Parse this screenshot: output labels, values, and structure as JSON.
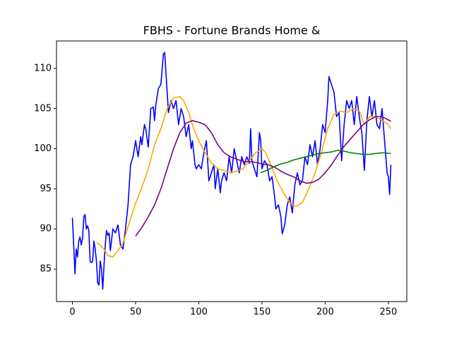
{
  "chart_data": {
    "type": "line",
    "title": "FBHS - Fortune Brands Home &",
    "xlim": [
      -12.6,
      264.6
    ],
    "ylim": [
      80.95,
      113.43
    ],
    "xticks": [
      0,
      50,
      100,
      150,
      200,
      250
    ],
    "yticks": [
      85,
      90,
      95,
      100,
      105,
      110
    ],
    "grid": false,
    "series": [
      {
        "color": "#0000ff",
        "x": [
          0,
          1,
          2,
          3,
          4,
          5,
          6,
          7,
          8,
          9,
          10,
          11,
          12,
          13,
          14,
          15,
          16,
          17,
          18,
          19,
          20,
          21,
          22,
          23,
          24,
          25,
          26,
          27,
          28,
          29,
          30,
          32,
          34,
          36,
          38,
          40,
          42,
          44,
          46,
          48,
          50,
          52,
          54,
          55,
          57,
          58,
          60,
          62,
          64,
          65,
          66,
          68,
          70,
          72,
          73,
          75,
          76,
          78,
          80,
          82,
          84,
          86,
          88,
          90,
          92,
          94,
          95,
          97,
          98,
          100,
          102,
          104,
          106,
          108,
          110,
          112,
          113,
          115,
          117,
          118,
          120,
          122,
          124,
          126,
          128,
          130,
          132,
          134,
          136,
          138,
          140,
          141,
          142,
          143,
          144,
          146,
          148,
          149,
          150,
          152,
          154,
          156,
          158,
          160,
          161,
          163,
          165,
          166,
          168,
          170,
          172,
          174,
          176,
          178,
          180,
          182,
          184,
          186,
          188,
          190,
          192,
          194,
          196,
          198,
          200,
          202,
          203,
          205,
          207,
          209,
          211,
          213,
          215,
          217,
          219,
          221,
          223,
          225,
          227,
          229,
          231,
          233,
          235,
          237,
          239,
          241,
          243,
          245,
          247,
          249,
          250,
          251,
          252
        ],
        "values": [
          91.4,
          88,
          84.4,
          87.5,
          86.5,
          88.5,
          89,
          88,
          88.8,
          91.5,
          91.8,
          90,
          90.4,
          89.8,
          86,
          85.8,
          86,
          88.5,
          87.5,
          86,
          83.3,
          83,
          86,
          85,
          82.5,
          85.5,
          88,
          89.8,
          89.2,
          89.5,
          87.3,
          90,
          89.5,
          90.5,
          88,
          87.5,
          90,
          93,
          98,
          99,
          101,
          99,
          101.5,
          100.5,
          103,
          102.5,
          100.2,
          105,
          105.2,
          103.5,
          105.5,
          107.5,
          108,
          111.8,
          112,
          107,
          104.5,
          106,
          105,
          106,
          103,
          105,
          104,
          101.5,
          103,
          100,
          101,
          98,
          97.5,
          98,
          97.5,
          99.5,
          101,
          96,
          97,
          98,
          95,
          97.5,
          94.5,
          96,
          97,
          96,
          99,
          97,
          100,
          98.5,
          97,
          99,
          98,
          99,
          98.2,
          102.5,
          98.5,
          98,
          97.5,
          96.5,
          102,
          101,
          97.5,
          98.5,
          98,
          96,
          96.5,
          94,
          92.5,
          93,
          91.5,
          89.4,
          90.5,
          93,
          94,
          92,
          95.5,
          97,
          95.5,
          96,
          99,
          98,
          100.5,
          99,
          101,
          98,
          100,
          103,
          102,
          106,
          109,
          108,
          107,
          104,
          104.5,
          98.5,
          103,
          106,
          105,
          106,
          103,
          106.5,
          104,
          102,
          97.3,
          103.5,
          106.5,
          104,
          106,
          103,
          102.5,
          105,
          101,
          97,
          96.5,
          94.3,
          98
        ]
      },
      {
        "color": "#ffa500",
        "x": [
          19,
          22,
          25,
          28,
          32,
          36,
          40,
          45,
          50,
          55,
          60,
          65,
          70,
          75,
          80,
          85,
          88,
          92,
          96,
          100,
          105,
          110,
          115,
          120,
          125,
          130,
          135,
          140,
          145,
          150,
          153,
          157,
          162,
          167,
          172,
          177,
          182,
          187,
          192,
          197,
          202,
          207,
          212,
          217,
          222,
          227,
          231,
          235,
          240,
          245,
          250,
          252
        ],
        "values": [
          88.3,
          88,
          87.5,
          86.7,
          86.5,
          87.3,
          88.2,
          90.8,
          93.2,
          95.2,
          97.5,
          100.5,
          102.5,
          105,
          106.3,
          106.5,
          106,
          104.5,
          102.5,
          101,
          99.5,
          98.2,
          97.5,
          97.3,
          97,
          97.2,
          97.5,
          98.5,
          99.5,
          100,
          99.5,
          98,
          96,
          94.5,
          93.3,
          92.8,
          93.3,
          95,
          97,
          99.5,
          102.5,
          104.3,
          104.7,
          104.5,
          105,
          104.7,
          103,
          104,
          104,
          103.5,
          103,
          102.5
        ]
      },
      {
        "color": "#800080",
        "x": [
          50,
          55,
          60,
          65,
          70,
          75,
          80,
          85,
          90,
          95,
          100,
          105,
          110,
          115,
          120,
          125,
          130,
          135,
          140,
          145,
          150,
          155,
          160,
          165,
          170,
          175,
          180,
          185,
          190,
          195,
          200,
          205,
          210,
          215,
          220,
          225,
          230,
          235,
          240,
          245,
          250,
          252
        ],
        "values": [
          89.1,
          90.2,
          91.5,
          93,
          95,
          97.5,
          100,
          102,
          103.2,
          103.5,
          103.3,
          103,
          102,
          100.5,
          99.5,
          99,
          98.7,
          98.4,
          98.4,
          98.3,
          98.1,
          98,
          97.7,
          97.2,
          96.8,
          96.5,
          96,
          95.7,
          95.8,
          96.2,
          97,
          98,
          99.2,
          100.3,
          101.2,
          102.1,
          103,
          103.6,
          104,
          104,
          103.6,
          103.4
        ]
      },
      {
        "color": "#008000",
        "x": [
          149,
          155,
          160,
          165,
          170,
          175,
          180,
          185,
          190,
          195,
          200,
          205,
          210,
          215,
          220,
          225,
          230,
          235,
          240,
          245,
          252
        ],
        "values": [
          97,
          97.4,
          97.8,
          98.1,
          98.3,
          98.6,
          98.8,
          99,
          99.2,
          99.4,
          99.5,
          99.6,
          99.8,
          99.7,
          99.5,
          99.4,
          99.3,
          99.3,
          99.4,
          99.5,
          99.4
        ]
      }
    ]
  }
}
